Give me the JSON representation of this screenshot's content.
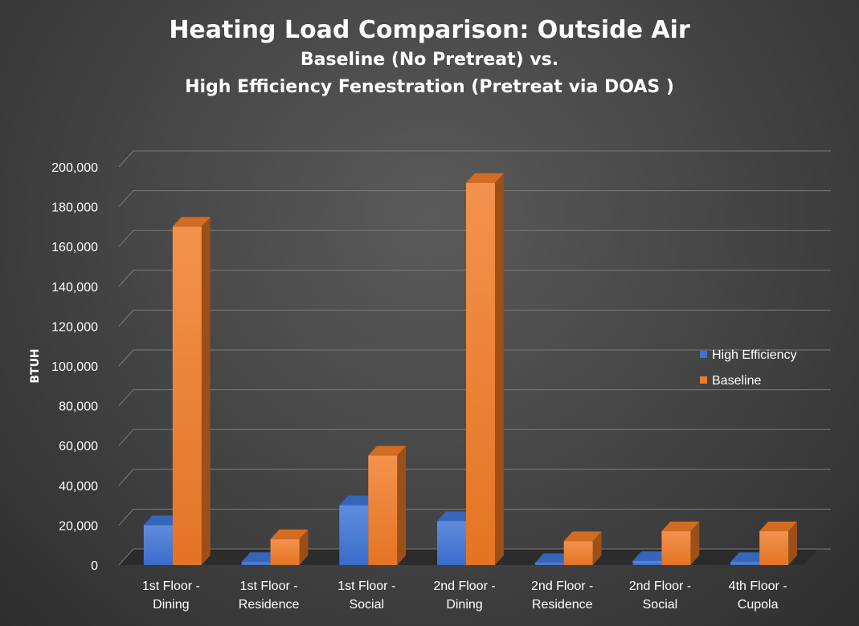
{
  "chart_data": {
    "type": "bar",
    "title": "Heating Load Comparison: Outside Air",
    "subtitle_line1": "Baseline (No Pretreat) vs.",
    "subtitle_line2": "High Efficiency Fenestration (Pretreat via DOAS )",
    "ylabel": "BTUH",
    "xlabel": "",
    "ylim": [
      0,
      200000
    ],
    "y_ticks": [
      "0",
      "20,000",
      "40,000",
      "60,000",
      "80,000",
      "100,000",
      "120,000",
      "140,000",
      "160,000",
      "180,000",
      "200,000"
    ],
    "categories": [
      [
        "1st Floor -",
        "Dining"
      ],
      [
        "1st Floor -",
        "Residence"
      ],
      [
        "1st Floor -",
        "Social"
      ],
      [
        "2nd Floor -",
        "Dining"
      ],
      [
        "2nd Floor -",
        "Residence"
      ],
      [
        "2nd Floor -",
        "Social"
      ],
      [
        "4th Floor -",
        "Cupola"
      ]
    ],
    "series": [
      {
        "name": "High Efficiency",
        "color": "#3d73d6",
        "values": [
          20000,
          1500,
          30000,
          22000,
          1000,
          2000,
          1500
        ]
      },
      {
        "name": "Baseline",
        "color": "#f07a26",
        "values": [
          170000,
          13000,
          55000,
          192000,
          12000,
          17000,
          17000
        ]
      }
    ],
    "legend_position": "right",
    "grid": true
  }
}
